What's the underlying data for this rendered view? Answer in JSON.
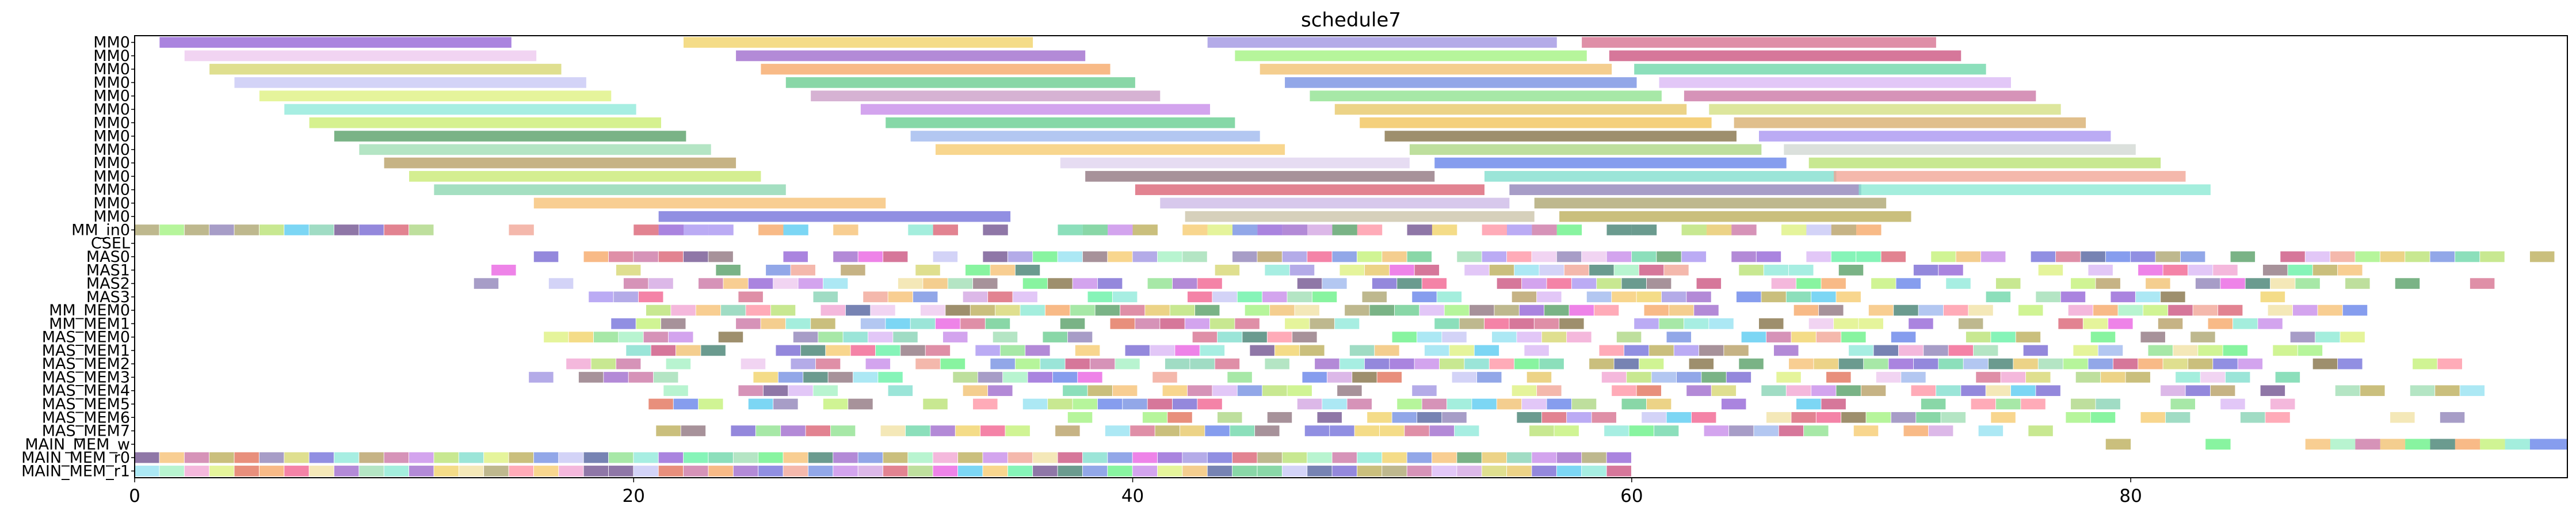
{
  "chart_data": {
    "type": "gantt",
    "title": "schedule7",
    "xlabel": "",
    "ylabel": "",
    "xlim": [
      0,
      97.5
    ],
    "xticks": [
      0,
      20,
      40,
      60,
      80
    ],
    "grid": false,
    "legend": "none",
    "rows": [
      {
        "label": "MM0",
        "bars": [
          [
            1,
            15.1,
            "#8e5bd4"
          ],
          [
            22,
            36,
            "#f0d060"
          ],
          [
            43,
            57,
            "#9b8fe0"
          ],
          [
            58,
            72.2,
            "#d46a8a"
          ]
        ]
      },
      {
        "label": "MM0",
        "bars": [
          [
            2,
            16.1,
            "#ecc5ee"
          ],
          [
            24.1,
            38.1,
            "#9a63c9"
          ],
          [
            44.1,
            58.2,
            "#9ef27a"
          ],
          [
            59.1,
            73.2,
            "#c84a78"
          ]
        ]
      },
      {
        "label": "MM0",
        "bars": [
          [
            3,
            17.1,
            "#d4d46a"
          ],
          [
            25.1,
            39.1,
            "#f5a35f"
          ],
          [
            45.1,
            59.2,
            "#f0be6a"
          ],
          [
            60.1,
            74.2,
            "#66d4a4"
          ]
        ]
      },
      {
        "label": "MM0",
        "bars": [
          [
            4,
            18.1,
            "#c4c4f4"
          ],
          [
            26.1,
            40.1,
            "#62c98a"
          ],
          [
            46.1,
            60.2,
            "#6d8ae0"
          ],
          [
            61.1,
            75.2,
            "#d8b4f4"
          ]
        ]
      },
      {
        "label": "MM0",
        "bars": [
          [
            5,
            19.1,
            "#dcf07a"
          ],
          [
            27.1,
            41.1,
            "#c898c4"
          ],
          [
            47.1,
            61.2,
            "#8ae08a"
          ],
          [
            62.1,
            76.2,
            "#c86fa0"
          ]
        ]
      },
      {
        "label": "MM0",
        "bars": [
          [
            6,
            20.1,
            "#8ae8d8"
          ],
          [
            29.1,
            43.1,
            "#c485e8"
          ],
          [
            48.1,
            62.2,
            "#e6c45f"
          ],
          [
            63.1,
            77.2,
            "#d2de7c"
          ]
        ]
      },
      {
        "label": "MM0",
        "bars": [
          [
            7,
            21.1,
            "#c8ec6a"
          ],
          [
            30.1,
            44.1,
            "#5ecb8a"
          ],
          [
            49.1,
            63.2,
            "#f0c050"
          ],
          [
            64.1,
            78.2,
            "#d6aa66"
          ]
        ]
      },
      {
        "label": "MM0",
        "bars": [
          [
            8,
            22.1,
            "#4e9a5e"
          ],
          [
            31.1,
            45.1,
            "#9ab4ec"
          ],
          [
            50.1,
            64.2,
            "#7e6a3c"
          ],
          [
            65.1,
            79.2,
            "#a48ff0"
          ]
        ]
      },
      {
        "label": "MM0",
        "bars": [
          [
            9,
            23.1,
            "#9bdcb0"
          ],
          [
            32.1,
            46.1,
            "#f6c868"
          ],
          [
            51.1,
            65.2,
            "#a8d47c"
          ],
          [
            66.1,
            80.2,
            "#cfd6d0"
          ]
        ]
      },
      {
        "label": "MM0",
        "bars": [
          [
            10,
            24.1,
            "#b39a5c"
          ],
          [
            37.1,
            51.1,
            "#ddd0ee"
          ],
          [
            52.1,
            66.2,
            "#5e7ce8"
          ],
          [
            67.1,
            81.2,
            "#b6e06c"
          ]
        ]
      },
      {
        "label": "MM0",
        "bars": [
          [
            11,
            25.1,
            "#c6e86c"
          ],
          [
            38.1,
            52.1,
            "#8a6e78"
          ],
          [
            54.1,
            68.2,
            "#79dccb"
          ],
          [
            68.1,
            82.2,
            "#f0a090"
          ]
        ]
      },
      {
        "label": "MM0",
        "bars": [
          [
            12,
            26.1,
            "#86d4ac"
          ],
          [
            40.1,
            54.1,
            "#d85a6c"
          ],
          [
            55.1,
            69.2,
            "#8a7cb4"
          ],
          [
            69.1,
            83.2,
            "#86e8d2"
          ]
        ]
      },
      {
        "label": "MM0",
        "bars": [
          [
            16,
            30.1,
            "#f6be6e"
          ],
          [
            41.1,
            55.1,
            "#cab6e6"
          ],
          [
            56.1,
            70.2,
            "#a8a068"
          ]
        ]
      },
      {
        "label": "MM0",
        "bars": [
          [
            21,
            35.1,
            "#6c6ad8"
          ],
          [
            42.1,
            56.1,
            "#c8c0a4"
          ],
          [
            57.1,
            71.2,
            "#b8aa52"
          ]
        ]
      },
      {
        "label": "MM_in0",
        "pattern": {
          "start": 0,
          "end": 12,
          "step": 1,
          "phase": 0,
          "density": 1.0,
          "seed": 3
        },
        "extra": [
          [
            15,
            16
          ],
          [
            20,
            21
          ],
          [
            21,
            22
          ],
          [
            22,
            23
          ],
          [
            23,
            24
          ],
          [
            25,
            26
          ],
          [
            26,
            27
          ],
          [
            28,
            29
          ],
          [
            31,
            32
          ],
          [
            32,
            33
          ],
          [
            34,
            35
          ],
          [
            37,
            38
          ],
          [
            38,
            39
          ],
          [
            39,
            40
          ],
          [
            40,
            41
          ],
          [
            42,
            43
          ],
          [
            43,
            44
          ],
          [
            44,
            45
          ],
          [
            45,
            46
          ],
          [
            46,
            47
          ],
          [
            47,
            48
          ],
          [
            48,
            49
          ],
          [
            49,
            50
          ],
          [
            51,
            52
          ],
          [
            52,
            53
          ],
          [
            54,
            55
          ],
          [
            55,
            56
          ],
          [
            56,
            57
          ],
          [
            57,
            58
          ],
          [
            59,
            60
          ],
          [
            60,
            61
          ],
          [
            62,
            63
          ],
          [
            63,
            64
          ],
          [
            64,
            65
          ],
          [
            66,
            67
          ],
          [
            67,
            68
          ],
          [
            68,
            69
          ],
          [
            69,
            70
          ]
        ]
      },
      {
        "label": "CSEL",
        "pattern": null
      },
      {
        "label": "MAS0",
        "pattern": {
          "start": 16,
          "end": 97,
          "step": 1,
          "phase": 0.0,
          "density": 0.8,
          "seed": 11
        }
      },
      {
        "label": "MAS1",
        "pattern": {
          "start": 14,
          "end": 90,
          "step": 1,
          "phase": 0.3,
          "density": 0.55,
          "seed": 17
        }
      },
      {
        "label": "MAS2",
        "pattern": {
          "start": 13,
          "end": 95,
          "step": 1,
          "phase": 0.6,
          "density": 0.5,
          "seed": 23
        }
      },
      {
        "label": "MAS3",
        "pattern": {
          "start": 17,
          "end": 92,
          "step": 1,
          "phase": 0.2,
          "density": 0.55,
          "seed": 29
        }
      },
      {
        "label": "MM_MEM0",
        "pattern": {
          "start": 19,
          "end": 90,
          "step": 1,
          "phase": 0.5,
          "density": 0.75,
          "seed": 31
        }
      },
      {
        "label": "MM_MEM1",
        "pattern": {
          "start": 19,
          "end": 87,
          "step": 1,
          "phase": 0.1,
          "density": 0.7,
          "seed": 37
        }
      },
      {
        "label": "MAS_MEM0",
        "pattern": {
          "start": 16,
          "end": 90,
          "step": 1,
          "phase": 0.4,
          "density": 0.7,
          "seed": 41
        }
      },
      {
        "label": "MAS_MEM1",
        "pattern": {
          "start": 19,
          "end": 89,
          "step": 1,
          "phase": 0.7,
          "density": 0.7,
          "seed": 43
        }
      },
      {
        "label": "MAS_MEM2",
        "pattern": {
          "start": 15,
          "end": 94,
          "step": 1,
          "phase": 0.3,
          "density": 0.7,
          "seed": 47
        }
      },
      {
        "label": "MAS_MEM3",
        "pattern": {
          "start": 15,
          "end": 88,
          "step": 1,
          "phase": 0.8,
          "density": 0.65,
          "seed": 53
        }
      },
      {
        "label": "MAS_MEM4",
        "pattern": {
          "start": 20,
          "end": 95,
          "step": 1,
          "phase": 0.2,
          "density": 0.65,
          "seed": 59
        }
      },
      {
        "label": "MAS_MEM5",
        "pattern": {
          "start": 16,
          "end": 88,
          "step": 1,
          "phase": 0.6,
          "density": 0.6,
          "seed": 61
        }
      },
      {
        "label": "MAS_MEM6",
        "pattern": {
          "start": 37,
          "end": 94,
          "step": 1,
          "phase": 0.4,
          "density": 0.6,
          "seed": 67
        }
      },
      {
        "label": "MAS_MEM7",
        "pattern": {
          "start": 20,
          "end": 77,
          "step": 1,
          "phase": 0.9,
          "density": 0.7,
          "seed": 71
        }
      },
      {
        "label": "MAIN_MEM_w",
        "extra": [
          [
            79,
            80
          ],
          [
            83,
            84
          ],
          [
            87,
            88
          ],
          [
            88,
            89
          ],
          [
            89,
            90
          ],
          [
            90,
            91
          ],
          [
            91,
            92
          ],
          [
            92,
            93
          ],
          [
            93,
            94
          ],
          [
            94,
            95
          ],
          [
            95,
            96
          ],
          [
            96,
            97.5
          ]
        ]
      },
      {
        "label": "MAIN_MEM_r0",
        "pattern": {
          "start": 0,
          "end": 60,
          "step": 1,
          "phase": 0,
          "density": 1.0,
          "seed": 73
        }
      },
      {
        "label": "MAIN_MEM_r1",
        "pattern": {
          "start": 0,
          "end": 60,
          "step": 1,
          "phase": 0,
          "density": 1.0,
          "seed": 79
        }
      }
    ]
  }
}
